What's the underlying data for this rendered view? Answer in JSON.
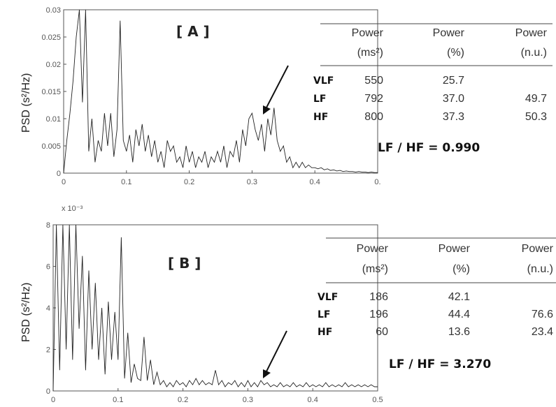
{
  "chart_data": [
    {
      "type": "line",
      "panel_label": "[ A ]",
      "ylabel": "PSD (s²/Hz)",
      "xlim": [
        0,
        0.5
      ],
      "ylim": [
        0,
        0.03
      ],
      "x_ticks": [
        "0",
        "0.1",
        "0.2",
        "0.3",
        "0.4",
        "0."
      ],
      "y_ticks": [
        "0",
        "0.005",
        "0.01",
        "0.015",
        "0.02",
        "0.025",
        "0.03"
      ],
      "y_multiplier": "",
      "x": [
        0,
        0.005,
        0.01,
        0.015,
        0.02,
        0.025,
        0.03,
        0.035,
        0.04,
        0.045,
        0.05,
        0.055,
        0.06,
        0.065,
        0.07,
        0.075,
        0.08,
        0.085,
        0.09,
        0.095,
        0.1,
        0.105,
        0.11,
        0.115,
        0.12,
        0.125,
        0.13,
        0.135,
        0.14,
        0.145,
        0.15,
        0.155,
        0.16,
        0.165,
        0.17,
        0.175,
        0.18,
        0.185,
        0.19,
        0.195,
        0.2,
        0.205,
        0.21,
        0.215,
        0.22,
        0.225,
        0.23,
        0.235,
        0.24,
        0.245,
        0.25,
        0.255,
        0.26,
        0.265,
        0.27,
        0.275,
        0.28,
        0.285,
        0.29,
        0.295,
        0.3,
        0.305,
        0.31,
        0.315,
        0.32,
        0.325,
        0.33,
        0.335,
        0.34,
        0.345,
        0.35,
        0.355,
        0.36,
        0.365,
        0.37,
        0.375,
        0.38,
        0.385,
        0.39,
        0.395,
        0.4,
        0.405,
        0.41,
        0.415,
        0.42,
        0.425,
        0.43,
        0.435,
        0.44,
        0.445,
        0.45,
        0.455,
        0.46,
        0.465,
        0.47,
        0.475,
        0.48,
        0.485,
        0.49,
        0.495,
        0.5
      ],
      "y": [
        0,
        0.006,
        0.011,
        0.017,
        0.025,
        0.03,
        0.013,
        0.03,
        0.004,
        0.01,
        0.002,
        0.006,
        0.004,
        0.011,
        0.005,
        0.011,
        0.003,
        0.008,
        0.028,
        0.006,
        0.004,
        0.007,
        0.002,
        0.008,
        0.005,
        0.009,
        0.004,
        0.007,
        0.003,
        0.006,
        0.002,
        0.004,
        0.001,
        0.006,
        0.004,
        0.005,
        0.002,
        0.003,
        0.001,
        0.005,
        0.002,
        0.004,
        0.001,
        0.003,
        0.002,
        0.004,
        0.001,
        0.003,
        0.002,
        0.004,
        0.002,
        0.005,
        0.001,
        0.004,
        0.003,
        0.006,
        0.002,
        0.008,
        0.005,
        0.01,
        0.011,
        0.008,
        0.006,
        0.009,
        0.004,
        0.01,
        0.007,
        0.012,
        0.006,
        0.004,
        0.005,
        0.002,
        0.003,
        0.001,
        0.002,
        0.001,
        0.002,
        0.001,
        0.0015,
        0.001,
        0.001,
        0.0008,
        0.001,
        0.0006,
        0.0008,
        0.0005,
        0.0006,
        0.0004,
        0.0005,
        0.0003,
        0.0004,
        0.0003,
        0.0003,
        0.0002,
        0.0003,
        0.0002,
        0.0002,
        0.0001,
        0.0002,
        0.0001,
        0.0001
      ],
      "table": {
        "headers": [
          [
            "Power",
            "(ms²)"
          ],
          [
            "Power",
            "(%)"
          ],
          [
            "Power",
            "(n.u.)"
          ]
        ],
        "rows": [
          {
            "label": "VLF",
            "ms2": "550",
            "pct": "25.7",
            "nu": ""
          },
          {
            "label": "LF",
            "ms2": "792",
            "pct": "37.0",
            "nu": "49.7"
          },
          {
            "label": "HF",
            "ms2": "800",
            "pct": "37.3",
            "nu": "50.3"
          }
        ]
      },
      "ratio_text": "LF / HF =  0.990"
    },
    {
      "type": "line",
      "panel_label": "[ B ]",
      "ylabel": "PSD (s²/Hz)",
      "xlim": [
        0,
        0.5
      ],
      "ylim": [
        0,
        8
      ],
      "x_ticks": [
        "0",
        "0.1",
        "0.2",
        "0.3",
        "0.4",
        "0.5"
      ],
      "y_ticks": [
        "0",
        "2",
        "4",
        "6",
        "8"
      ],
      "y_multiplier": "x 10⁻³",
      "x": [
        0,
        0.005,
        0.01,
        0.015,
        0.02,
        0.025,
        0.03,
        0.035,
        0.04,
        0.045,
        0.05,
        0.055,
        0.06,
        0.065,
        0.07,
        0.075,
        0.08,
        0.085,
        0.09,
        0.095,
        0.1,
        0.105,
        0.11,
        0.115,
        0.12,
        0.125,
        0.13,
        0.135,
        0.14,
        0.145,
        0.15,
        0.155,
        0.16,
        0.165,
        0.17,
        0.175,
        0.18,
        0.185,
        0.19,
        0.195,
        0.2,
        0.205,
        0.21,
        0.215,
        0.22,
        0.225,
        0.23,
        0.235,
        0.24,
        0.245,
        0.25,
        0.255,
        0.26,
        0.265,
        0.27,
        0.275,
        0.28,
        0.285,
        0.29,
        0.295,
        0.3,
        0.305,
        0.31,
        0.315,
        0.32,
        0.325,
        0.33,
        0.335,
        0.34,
        0.345,
        0.35,
        0.355,
        0.36,
        0.365,
        0.37,
        0.375,
        0.38,
        0.385,
        0.39,
        0.395,
        0.4,
        0.405,
        0.41,
        0.415,
        0.42,
        0.425,
        0.43,
        0.435,
        0.44,
        0.445,
        0.45,
        0.455,
        0.46,
        0.465,
        0.47,
        0.475,
        0.48,
        0.485,
        0.49,
        0.495,
        0.5
      ],
      "y": [
        0,
        8,
        1,
        8,
        2,
        8,
        1.5,
        8,
        3,
        6.5,
        1,
        5.8,
        2,
        5.2,
        1.5,
        4,
        0.8,
        4.3,
        1.5,
        3.8,
        1.5,
        7.4,
        0.6,
        2.8,
        0.4,
        1.3,
        0.6,
        0.5,
        2.6,
        0.5,
        1.5,
        0.3,
        0.9,
        0.3,
        0.5,
        0.2,
        0.4,
        0.2,
        0.5,
        0.3,
        0.4,
        0.2,
        0.5,
        0.3,
        0.6,
        0.3,
        0.5,
        0.3,
        0.4,
        0.3,
        1.0,
        0.3,
        0.5,
        0.2,
        0.4,
        0.3,
        0.5,
        0.2,
        0.4,
        0.2,
        0.5,
        0.2,
        0.4,
        0.2,
        0.5,
        0.3,
        0.4,
        0.2,
        0.3,
        0.2,
        0.4,
        0.2,
        0.3,
        0.2,
        0.4,
        0.2,
        0.3,
        0.2,
        0.4,
        0.2,
        0.3,
        0.2,
        0.3,
        0.2,
        0.4,
        0.2,
        0.3,
        0.2,
        0.3,
        0.2,
        0.4,
        0.2,
        0.3,
        0.2,
        0.3,
        0.2,
        0.3,
        0.2,
        0.3,
        0.2,
        0.2
      ],
      "table": {
        "headers": [
          [
            "Power",
            "(ms²)"
          ],
          [
            "Power",
            "(%)"
          ],
          [
            "Power",
            "(n.u.)"
          ]
        ],
        "rows": [
          {
            "label": "VLF",
            "ms2": "186",
            "pct": "42.1",
            "nu": ""
          },
          {
            "label": "LF",
            "ms2": "196",
            "pct": "44.4",
            "nu": "76.6"
          },
          {
            "label": "HF",
            "ms2": "60",
            "pct": "13.6",
            "nu": "23.4"
          }
        ]
      },
      "ratio_text": "LF / HF =  3.270"
    }
  ]
}
